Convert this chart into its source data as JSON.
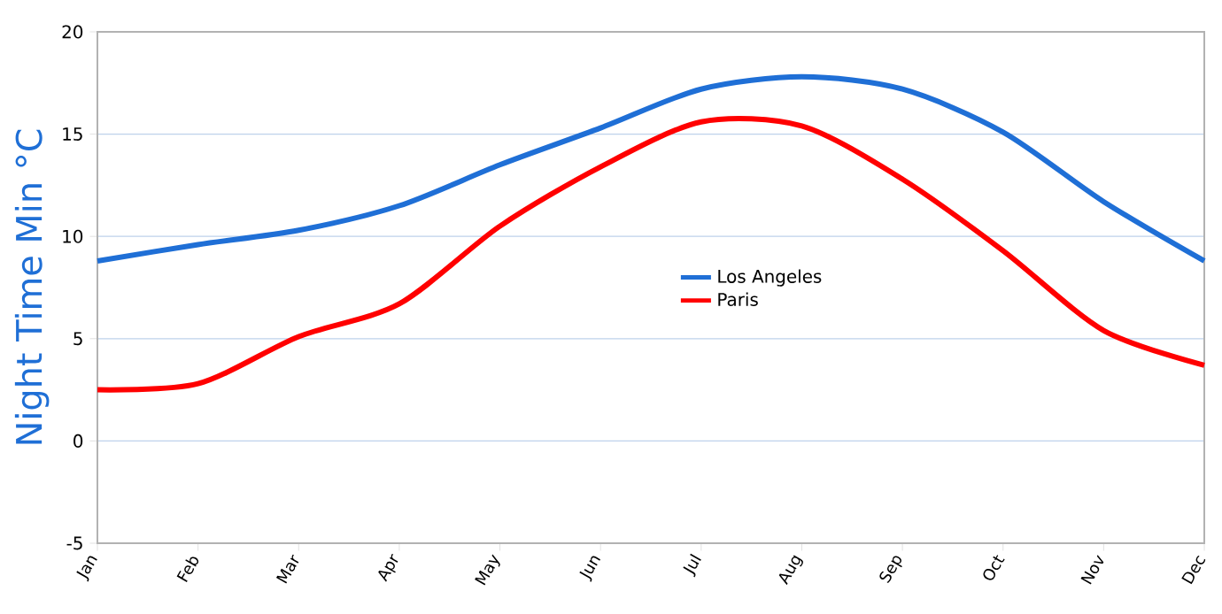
{
  "chart_data": {
    "type": "line",
    "ylabel": "Night Time Min °C",
    "categories": [
      "Jan",
      "Feb",
      "Mar",
      "Apr",
      "May",
      "Jun",
      "Jul",
      "Aug",
      "Sep",
      "Oct",
      "Nov",
      "Dec"
    ],
    "series": [
      {
        "name": "Los Angeles",
        "color": "#1f6fd6",
        "values": [
          8.8,
          9.6,
          10.3,
          11.5,
          13.5,
          15.3,
          17.2,
          17.8,
          17.2,
          15.1,
          11.7,
          8.8
        ]
      },
      {
        "name": "Paris",
        "color": "#ff0000",
        "values": [
          2.5,
          2.8,
          5.1,
          6.7,
          10.5,
          13.4,
          15.6,
          15.4,
          12.8,
          9.3,
          5.4,
          3.7
        ]
      }
    ],
    "ylim": [
      -5,
      20
    ],
    "yticks": [
      -5,
      0,
      5,
      10,
      15,
      20
    ],
    "grid": "y",
    "legend": "center",
    "marker": "none",
    "line_style": "solid"
  }
}
